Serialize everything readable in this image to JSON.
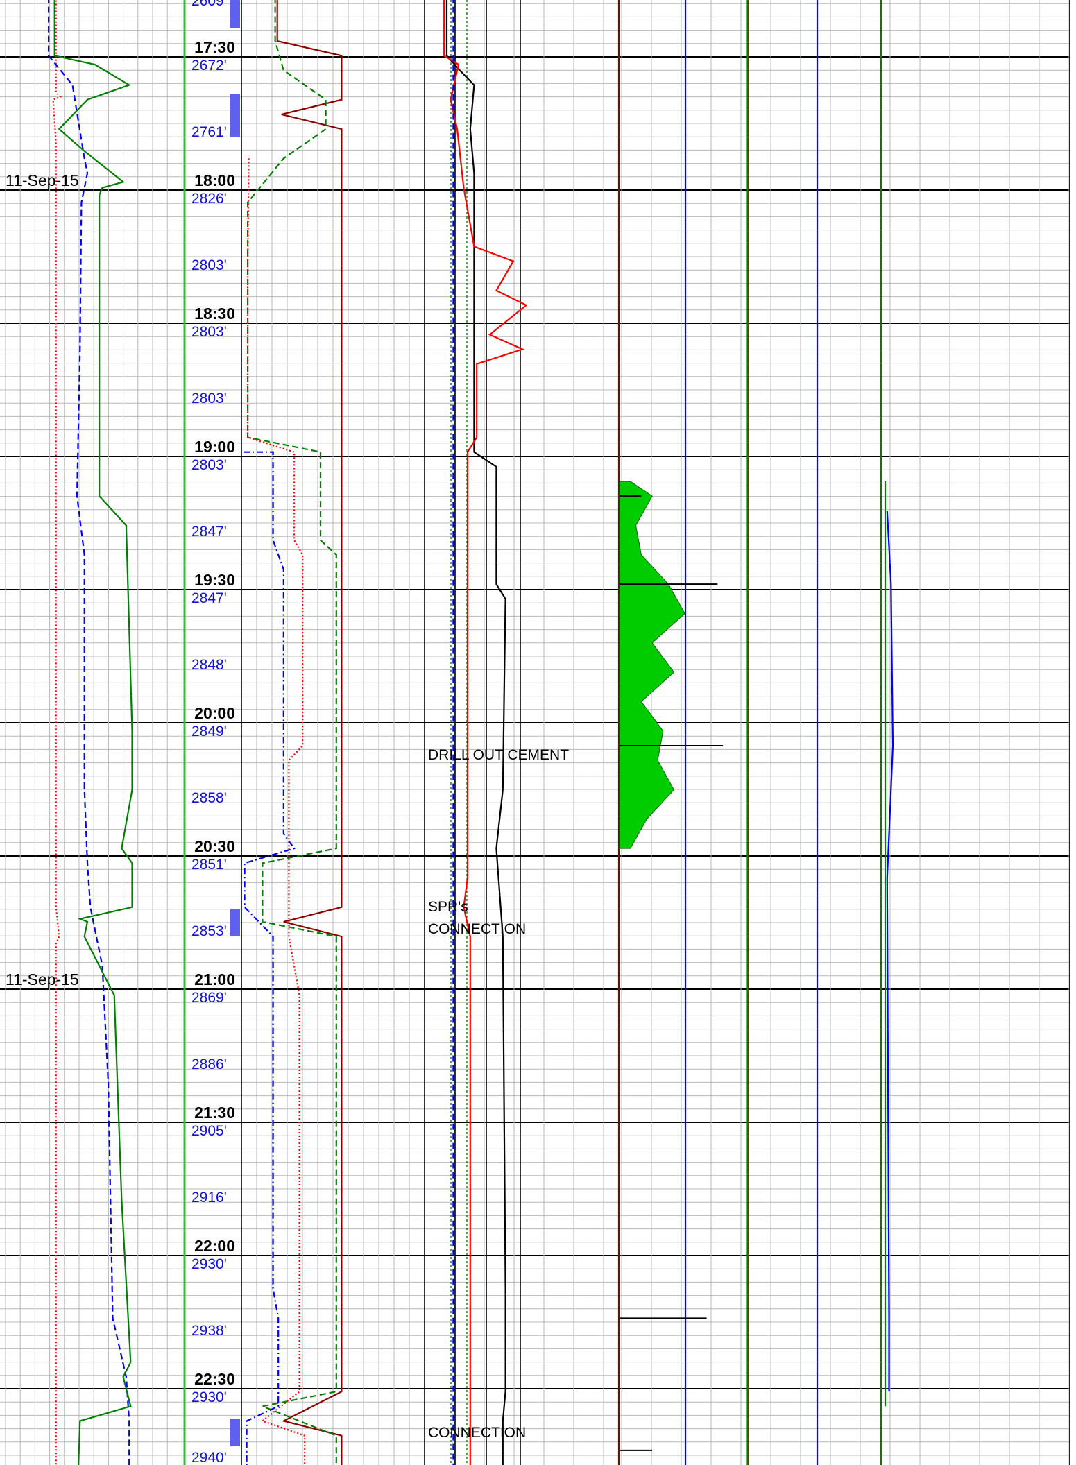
{
  "chart_data": {
    "type": "line",
    "subtype": "mud-log strip chart (time-based, multiple tracks)",
    "grid": true,
    "y_axis": "time",
    "dates": [
      "11-Sep-15",
      "11-Sep-15"
    ],
    "time_ticks": [
      "17:30",
      "18:00",
      "18:30",
      "19:00",
      "19:30",
      "20:00",
      "20:30",
      "21:00",
      "21:30",
      "22:00",
      "22:30"
    ],
    "depth_labels": [
      "2609'",
      "2672'",
      "2761'",
      "2826'",
      "2803'",
      "2803'",
      "2803'",
      "2803'",
      "2847'",
      "2847'",
      "2848'",
      "2849'",
      "2858'",
      "2851'",
      "2853'",
      "2869'",
      "2886'",
      "2905'",
      "2916'",
      "2930'",
      "2938'",
      "2930'",
      "2940'"
    ],
    "annotations": [
      "DRILL OUT CEMENT",
      "SPR's",
      "CONNECTION",
      "CONNECTION"
    ],
    "series": [
      {
        "track": 1,
        "color": "#ff0000",
        "style": "dotted",
        "values": [
          [
            0,
            0.19
          ],
          [
            6.5,
            0.19
          ],
          [
            6.8,
            0.22
          ],
          [
            7,
            0.17
          ],
          [
            10,
            0.19
          ],
          [
            28,
            0.19
          ],
          [
            40,
            0.19
          ],
          [
            62,
            0.19
          ],
          [
            64,
            0.21
          ],
          [
            64.5,
            0.19
          ],
          [
            100,
            0.19
          ]
        ]
      },
      {
        "track": 1,
        "color": "#0000ff",
        "style": "dashed",
        "values": [
          [
            0,
            0.14
          ],
          [
            4,
            0.14
          ],
          [
            6,
            0.3
          ],
          [
            11,
            0.38
          ],
          [
            12,
            0.4
          ],
          [
            14,
            0.36
          ],
          [
            24,
            0.35
          ],
          [
            34,
            0.33
          ],
          [
            38,
            0.38
          ],
          [
            54,
            0.38
          ],
          [
            59,
            0.4
          ],
          [
            62,
            0.42
          ],
          [
            66,
            0.5
          ],
          [
            74,
            0.54
          ],
          [
            90,
            0.57
          ],
          [
            94,
            0.66
          ],
          [
            97,
            0.68
          ],
          [
            100,
            0.68
          ]
        ]
      },
      {
        "track": 1,
        "color": "#008000",
        "style": "solid",
        "values": [
          [
            0,
            0.18
          ],
          [
            4,
            0.18
          ],
          [
            4.6,
            0.45
          ],
          [
            6,
            0.68
          ],
          [
            7,
            0.4
          ],
          [
            9,
            0.21
          ],
          [
            10.5,
            0.38
          ],
          [
            12.6,
            0.64
          ],
          [
            13,
            0.5
          ],
          [
            13.5,
            0.48
          ],
          [
            22,
            0.48
          ],
          [
            34,
            0.48
          ],
          [
            36,
            0.66
          ],
          [
            50,
            0.7
          ],
          [
            54,
            0.7
          ],
          [
            58,
            0.63
          ],
          [
            59,
            0.7
          ],
          [
            62,
            0.7
          ],
          [
            62.8,
            0.35
          ],
          [
            63,
            0.4
          ],
          [
            64,
            0.38
          ],
          [
            68,
            0.58
          ],
          [
            82,
            0.63
          ],
          [
            93,
            0.69
          ],
          [
            94,
            0.64
          ],
          [
            96,
            0.69
          ],
          [
            97,
            0.35
          ],
          [
            100,
            0.34
          ]
        ]
      },
      {
        "track": 2,
        "color": "#8b0000",
        "style": "solid",
        "values": [
          [
            0,
            0.34
          ],
          [
            3,
            0.34
          ],
          [
            4,
            0.95
          ],
          [
            7,
            0.95
          ],
          [
            8,
            0.38
          ],
          [
            9,
            0.95
          ],
          [
            25,
            0.95
          ],
          [
            50,
            0.95
          ],
          [
            62,
            0.95
          ],
          [
            63,
            0.4
          ],
          [
            64,
            0.95
          ],
          [
            95,
            0.95
          ],
          [
            97,
            0.4
          ],
          [
            98,
            0.95
          ],
          [
            100,
            0.95
          ]
        ]
      },
      {
        "track": 2,
        "color": "#008000",
        "style": "dashed",
        "values": [
          [
            0,
            0.32
          ],
          [
            3,
            0.32
          ],
          [
            5,
            0.4
          ],
          [
            7,
            0.8
          ],
          [
            9,
            0.8
          ],
          [
            11,
            0.4
          ],
          [
            14,
            0.06
          ],
          [
            30,
            0.06
          ],
          [
            31,
            0.75
          ],
          [
            37,
            0.75
          ],
          [
            38,
            0.9
          ],
          [
            58,
            0.9
          ],
          [
            59,
            0.2
          ],
          [
            63,
            0.2
          ],
          [
            64,
            0.9
          ],
          [
            95,
            0.9
          ],
          [
            96,
            0.2
          ],
          [
            98,
            0.9
          ],
          [
            100,
            0.9
          ]
        ]
      },
      {
        "track": 2,
        "color": "#ff0000",
        "style": "dotted",
        "values": [
          [
            11,
            0.07
          ],
          [
            18,
            0.06
          ],
          [
            30,
            0.06
          ],
          [
            31,
            0.5
          ],
          [
            37,
            0.5
          ],
          [
            38,
            0.58
          ],
          [
            51,
            0.58
          ],
          [
            52,
            0.45
          ],
          [
            58,
            0.45
          ],
          [
            64,
            0.45
          ],
          [
            68,
            0.55
          ],
          [
            95,
            0.55
          ],
          [
            97,
            0.2
          ],
          [
            98,
            0.6
          ],
          [
            100,
            0.6
          ]
        ]
      },
      {
        "track": 2,
        "color": "#0000ff",
        "style": "dashdot",
        "values": [
          [
            31,
            0.02
          ],
          [
            31,
            0.3
          ],
          [
            37,
            0.3
          ],
          [
            39,
            0.4
          ],
          [
            57,
            0.4
          ],
          [
            58,
            0.5
          ],
          [
            59,
            0.03
          ],
          [
            62,
            0.03
          ],
          [
            64,
            0.3
          ],
          [
            88,
            0.3
          ],
          [
            90,
            0.35
          ],
          [
            96,
            0.35
          ],
          [
            97,
            0.05
          ],
          [
            100,
            0.05
          ]
        ]
      },
      {
        "track": 3,
        "color": "#000000",
        "style": "solid",
        "values": [
          [
            0,
            0.17
          ],
          [
            4,
            0.17
          ],
          [
            5,
            0.27
          ],
          [
            6,
            0.38
          ],
          [
            9,
            0.35
          ],
          [
            12,
            0.38
          ],
          [
            31,
            0.38
          ],
          [
            32,
            0.55
          ],
          [
            40,
            0.55
          ],
          [
            41,
            0.62
          ],
          [
            54,
            0.6
          ],
          [
            58,
            0.55
          ],
          [
            64,
            0.6
          ],
          [
            88,
            0.62
          ],
          [
            95,
            0.62
          ],
          [
            97,
            0.6
          ],
          [
            100,
            0.6
          ]
        ]
      },
      {
        "track": 3,
        "color": "#ff0000",
        "style": "solid",
        "values": [
          [
            0,
            0.15
          ],
          [
            4,
            0.15
          ],
          [
            4.6,
            0.26
          ],
          [
            7,
            0.2
          ],
          [
            9,
            0.25
          ],
          [
            13,
            0.3
          ],
          [
            17,
            0.38
          ],
          [
            18,
            0.68
          ],
          [
            20,
            0.55
          ],
          [
            21,
            0.78
          ],
          [
            23,
            0.5
          ],
          [
            24,
            0.75
          ],
          [
            25,
            0.4
          ],
          [
            30,
            0.4
          ],
          [
            31,
            0.33
          ],
          [
            60,
            0.33
          ],
          [
            62,
            0.3
          ],
          [
            64,
            0.35
          ],
          [
            100,
            0.35
          ]
        ]
      },
      {
        "track": 3,
        "color": "#0000ff",
        "style": "dashed",
        "values": [
          [
            0,
            0.22
          ],
          [
            30,
            0.22
          ],
          [
            100,
            0.22
          ]
        ]
      },
      {
        "track": 4,
        "color": "#00cc00",
        "style": "area",
        "values": [
          [
            33,
            0.1
          ],
          [
            34,
            0.3
          ],
          [
            36,
            0.15
          ],
          [
            38,
            0.2
          ],
          [
            40,
            0.45
          ],
          [
            42,
            0.6
          ],
          [
            44,
            0.3
          ],
          [
            46,
            0.5
          ],
          [
            48,
            0.2
          ],
          [
            50,
            0.4
          ],
          [
            52,
            0.35
          ],
          [
            54,
            0.5
          ],
          [
            56,
            0.25
          ],
          [
            58,
            0.1
          ]
        ]
      },
      {
        "track": 4,
        "color": "#000000",
        "style": "spike",
        "values": [
          [
            34,
            0.2
          ],
          [
            40,
            0.9
          ],
          [
            51,
            0.95
          ],
          [
            90,
            0.8
          ],
          [
            99,
            0.3
          ]
        ]
      },
      {
        "track": 5,
        "color": "#008000",
        "style": "solid",
        "values": [
          [
            0,
            0.1
          ],
          [
            100,
            0.1
          ]
        ]
      },
      {
        "track": 6,
        "color": "#008000",
        "style": "solid",
        "values": [
          [
            33,
            0.2
          ],
          [
            61,
            0.2
          ],
          [
            90,
            0.2
          ],
          [
            96,
            0.2
          ]
        ]
      },
      {
        "track": 6,
        "color": "#0000ff",
        "style": "solid",
        "values": [
          [
            35,
            0.25
          ],
          [
            40,
            0.35
          ],
          [
            51,
            0.4
          ],
          [
            60,
            0.25
          ],
          [
            90,
            0.3
          ],
          [
            95,
            0.3
          ]
        ]
      }
    ]
  }
}
